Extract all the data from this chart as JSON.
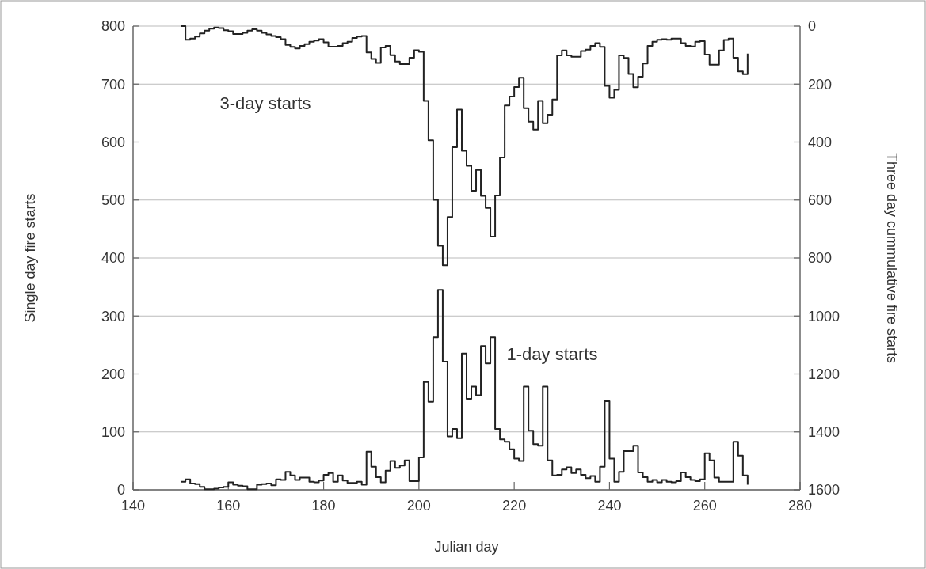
{
  "chart_data": {
    "type": "step",
    "xlabel": "Julian day",
    "ylabel": "Single day fire starts",
    "y2label": "Three day cummulative fire starts",
    "x": [
      150,
      151,
      152,
      153,
      154,
      155,
      156,
      157,
      158,
      159,
      160,
      161,
      162,
      163,
      164,
      165,
      166,
      167,
      168,
      169,
      170,
      171,
      172,
      173,
      174,
      175,
      176,
      177,
      178,
      179,
      180,
      181,
      182,
      183,
      184,
      185,
      186,
      187,
      188,
      189,
      190,
      191,
      192,
      193,
      194,
      195,
      196,
      197,
      198,
      199,
      200,
      201,
      202,
      203,
      204,
      205,
      206,
      207,
      208,
      209,
      210,
      211,
      212,
      213,
      214,
      215,
      216,
      217,
      218,
      219,
      220,
      221,
      222,
      223,
      224,
      225,
      226,
      227,
      228,
      229,
      230,
      231,
      232,
      233,
      234,
      235,
      236,
      237,
      238,
      239,
      240,
      241,
      242,
      243,
      244,
      245,
      246,
      247,
      248,
      249,
      250,
      251,
      252,
      253,
      254,
      255,
      256,
      257,
      258,
      259,
      260,
      261,
      262,
      263,
      264,
      265,
      266,
      267,
      268,
      269
    ],
    "xlim": [
      140,
      280
    ],
    "xticks": [
      140,
      160,
      180,
      200,
      220,
      240,
      260,
      280
    ],
    "ylim": [
      0,
      800
    ],
    "yticks": [
      0,
      100,
      200,
      300,
      400,
      500,
      600,
      700,
      800
    ],
    "y2lim": [
      1600,
      0
    ],
    "y2ticks": [
      0,
      200,
      400,
      600,
      800,
      1000,
      1200,
      1400,
      1600
    ],
    "grid": "y",
    "series": [
      {
        "name": "3-day starts",
        "color": "#222222",
        "axis": "y2",
        "values": [
          0,
          47,
          43,
          36,
          25,
          16,
          9,
          5,
          7,
          14,
          18,
          27,
          27,
          23,
          16,
          11,
          16,
          23,
          29,
          34,
          38,
          45,
          65,
          72,
          77,
          68,
          62,
          54,
          50,
          45,
          56,
          71,
          71,
          68,
          59,
          54,
          41,
          36,
          34,
          91,
          113,
          127,
          74,
          68,
          100,
          122,
          131,
          131,
          109,
          83,
          89,
          258,
          394,
          599,
          758,
          825,
          659,
          418,
          288,
          430,
          482,
          568,
          496,
          586,
          627,
          726,
          584,
          453,
          274,
          243,
          210,
          178,
          283,
          330,
          357,
          258,
          335,
          306,
          253,
          101,
          84,
          101,
          106,
          106,
          86,
          81,
          68,
          59,
          72,
          206,
          247,
          220,
          101,
          110,
          165,
          211,
          175,
          129,
          68,
          54,
          47,
          45,
          47,
          43,
          43,
          59,
          68,
          70,
          54,
          52,
          98,
          133,
          133,
          84,
          48,
          43,
          109,
          156,
          166,
          95
        ]
      },
      {
        "name": "1-day starts",
        "color": "#222222",
        "values": [
          14,
          18,
          11,
          10,
          5,
          1,
          1,
          2,
          4,
          5,
          13,
          9,
          7,
          6,
          1,
          1,
          9,
          10,
          11,
          8,
          18,
          17,
          31,
          25,
          17,
          21,
          21,
          14,
          13,
          16,
          26,
          29,
          14,
          25,
          16,
          12,
          12,
          14,
          9,
          66,
          40,
          22,
          13,
          33,
          50,
          38,
          42,
          51,
          15,
          15,
          56,
          186,
          152,
          263,
          345,
          221,
          92,
          105,
          89,
          235,
          157,
          178,
          163,
          248,
          218,
          263,
          105,
          87,
          83,
          70,
          54,
          50,
          178,
          102,
          79,
          76,
          178,
          51,
          25,
          26,
          35,
          39,
          29,
          35,
          26,
          20,
          24,
          14,
          40,
          153,
          54,
          14,
          31,
          67,
          67,
          76,
          30,
          22,
          14,
          17,
          13,
          17,
          14,
          13,
          15,
          30,
          22,
          17,
          15,
          18,
          63,
          51,
          21,
          14,
          14,
          14,
          83,
          59,
          25,
          9
        ]
      }
    ]
  }
}
